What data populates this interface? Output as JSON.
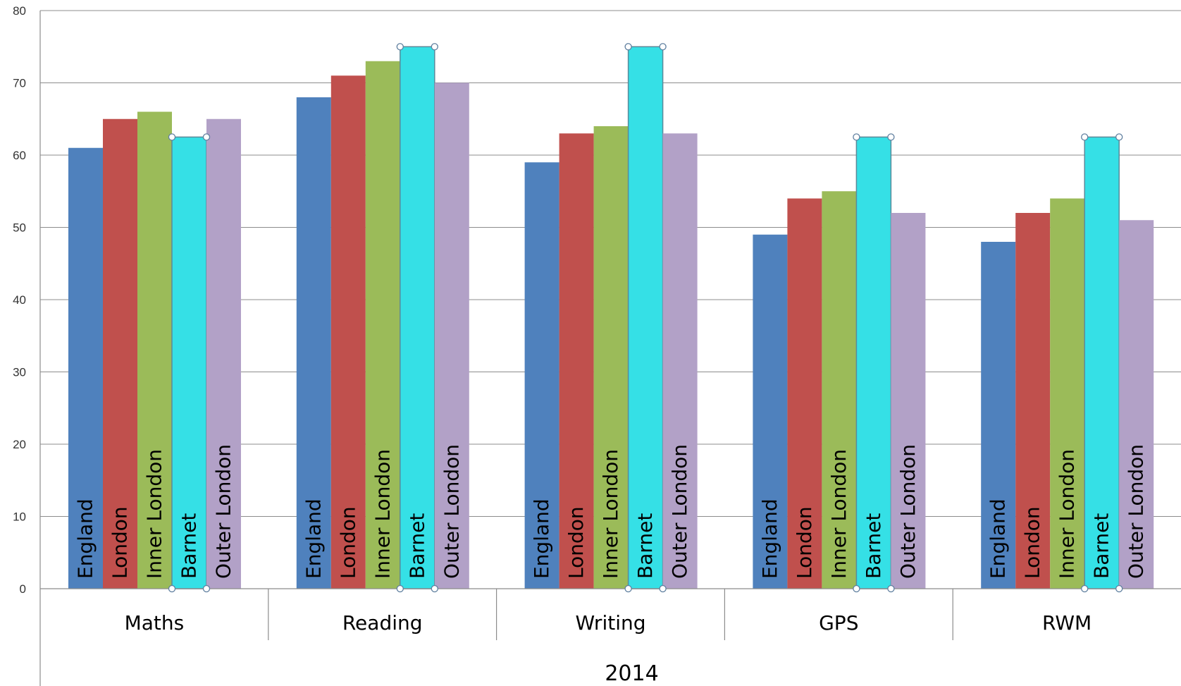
{
  "chart_data": {
    "type": "bar",
    "group_label": "2014",
    "categories": [
      "Maths",
      "Reading",
      "Writing",
      "GPS",
      "RWM"
    ],
    "series": [
      {
        "name": "England",
        "color": "#4f81bd",
        "values": [
          61,
          68,
          59,
          49,
          48
        ]
      },
      {
        "name": "London",
        "color": "#c0504d",
        "values": [
          65,
          71,
          63,
          54,
          52
        ]
      },
      {
        "name": "Inner London",
        "color": "#9bbb59",
        "values": [
          66,
          73,
          64,
          55,
          54
        ]
      },
      {
        "name": "Barnet",
        "color": "#35e0e6",
        "values": [
          62.5,
          75,
          75,
          62.5,
          62.5
        ]
      },
      {
        "name": "Outer London",
        "color": "#b2a1c7",
        "values": [
          65,
          70,
          63,
          52,
          51
        ]
      }
    ],
    "ylim": [
      0,
      80
    ],
    "yticks": [
      0,
      10,
      20,
      30,
      40,
      50,
      60,
      70,
      80
    ],
    "grid": true,
    "legend": "none",
    "selected_series": "Barnet"
  }
}
